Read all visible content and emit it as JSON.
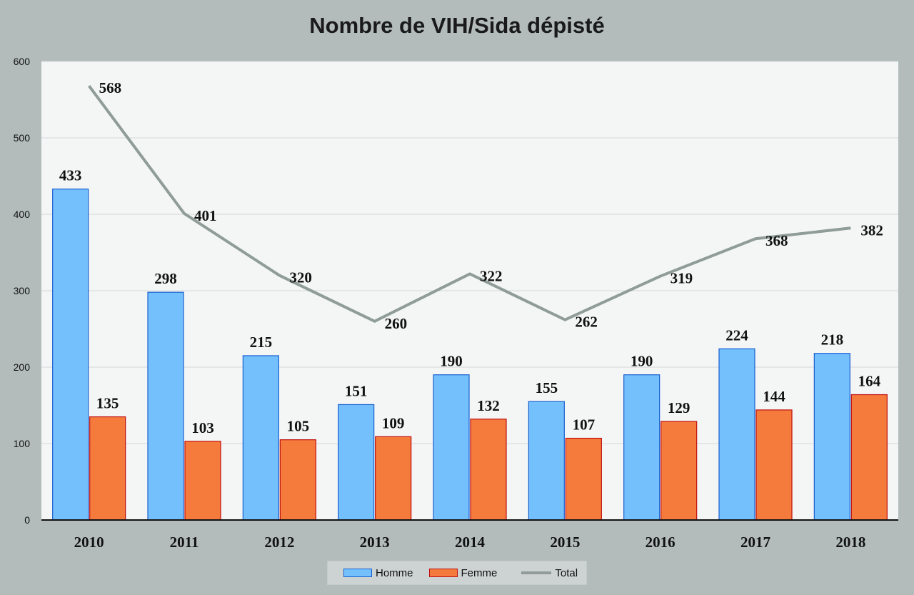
{
  "chart_data": {
    "type": "bar",
    "title": "Nombre de VIH/Sida dépisté",
    "categories": [
      "2010",
      "2011",
      "2012",
      "2013",
      "2014",
      "2015",
      "2016",
      "2017",
      "2018"
    ],
    "series": [
      {
        "name": "Homme",
        "type": "bar",
        "color": "#74c0fc",
        "values": [
          433,
          298,
          215,
          151,
          190,
          155,
          190,
          224,
          218
        ]
      },
      {
        "name": "Femme",
        "type": "bar",
        "color": "#f47b3c",
        "values": [
          135,
          103,
          105,
          109,
          132,
          107,
          129,
          144,
          164
        ]
      },
      {
        "name": "Total",
        "type": "line",
        "color": "#8f9c98",
        "values": [
          568,
          401,
          320,
          260,
          322,
          262,
          319,
          368,
          382
        ]
      }
    ],
    "ylim": [
      0,
      600
    ],
    "yticks": [
      0,
      100,
      200,
      300,
      400,
      500,
      600
    ],
    "grid": true,
    "legend": "bottom",
    "xlabel": "",
    "ylabel": ""
  }
}
